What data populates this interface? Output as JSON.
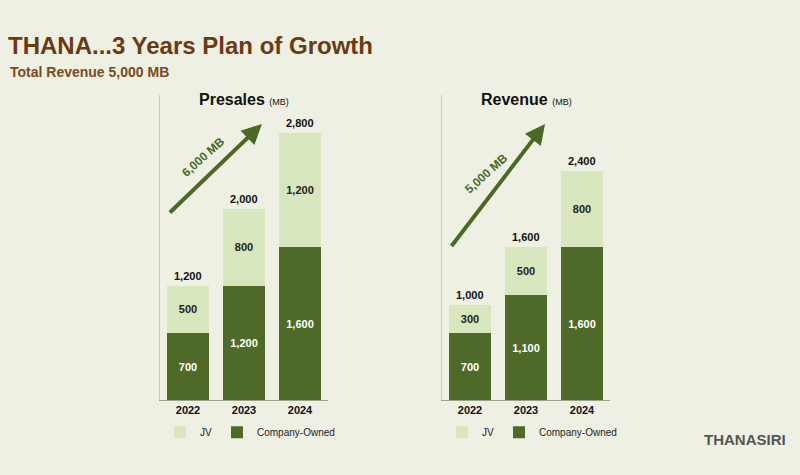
{
  "title": "THANA...3 Years Plan of Growth",
  "subtitle": "Total Revenue 5,000 MB",
  "brand": "THANASIRI",
  "chart_data": [
    {
      "type": "bar",
      "title": "Presales",
      "subtitle": "(MB)",
      "categories": [
        "2022",
        "2023",
        "2024"
      ],
      "series": [
        {
          "name": "JV",
          "color": "#d8e6bd",
          "values": [
            500,
            800,
            1200
          ],
          "value_labels": [
            "500",
            "800",
            "1,200"
          ]
        },
        {
          "name": "Company-Owned",
          "color": "#4f6a28",
          "values": [
            700,
            1200,
            1600
          ],
          "value_labels": [
            "700",
            "1,200",
            "1,600"
          ]
        }
      ],
      "totals": {
        "values": [
          1200,
          2000,
          2800
        ],
        "value_labels": [
          "1,200",
          "2,000",
          "2,800"
        ]
      },
      "annotations": [
        {
          "text": "6,000 MB"
        }
      ],
      "ylim": [
        0,
        3200
      ],
      "yticks": [],
      "stacked": true,
      "data_labels": true,
      "tick_labels": "x",
      "legend": "bottom",
      "grid": false
    },
    {
      "type": "bar",
      "title": "Revenue",
      "subtitle": "(MB)",
      "categories": [
        "2022",
        "2023",
        "2024"
      ],
      "series": [
        {
          "name": "JV",
          "color": "#d8e6bd",
          "values": [
            300,
            500,
            800
          ],
          "value_labels": [
            "300",
            "500",
            "800"
          ]
        },
        {
          "name": "Company-Owned",
          "color": "#4f6a28",
          "values": [
            700,
            1100,
            1600
          ],
          "value_labels": [
            "700",
            "1,100",
            "1,600"
          ]
        }
      ],
      "totals": {
        "values": [
          1000,
          1600,
          2400
        ],
        "value_labels": [
          "1,000",
          "1,600",
          "2,400"
        ]
      },
      "annotations": [
        {
          "text": "5,000 MB"
        }
      ],
      "ylim": [
        0,
        3200
      ],
      "yticks": [],
      "stacked": true,
      "data_labels": true,
      "tick_labels": "x",
      "legend": "bottom",
      "grid": false
    }
  ]
}
